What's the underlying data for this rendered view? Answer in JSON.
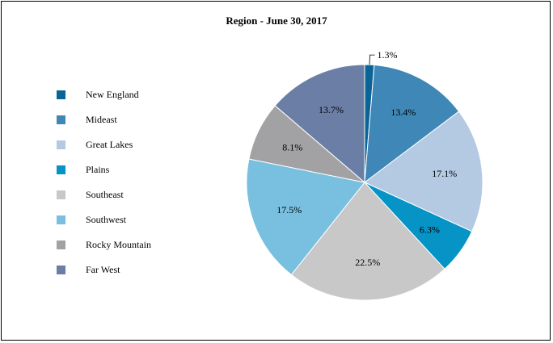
{
  "chart_data": {
    "type": "pie",
    "title": "Region - June 30, 2017",
    "legend_position": "left",
    "slices": [
      {
        "label": "New England",
        "value": 1.3,
        "display": "1.3%",
        "color": "#0a6596"
      },
      {
        "label": "Mideast",
        "value": 13.4,
        "display": "13.4%",
        "color": "#3f87b6"
      },
      {
        "label": "Great Lakes",
        "value": 17.1,
        "display": "17.1%",
        "color": "#b3cae2"
      },
      {
        "label": "Plains",
        "value": 6.3,
        "display": "6.3%",
        "color": "#0693c6"
      },
      {
        "label": "Southeast",
        "value": 22.5,
        "display": "22.5%",
        "color": "#c8c8c8"
      },
      {
        "label": "Southwest",
        "value": 17.5,
        "display": "17.5%",
        "color": "#79bfdf"
      },
      {
        "label": "Rocky Mountain",
        "value": 8.1,
        "display": "8.1%",
        "color": "#a2a2a4"
      },
      {
        "label": "Far West",
        "value": 13.7,
        "display": "13.7%",
        "color": "#6b7fa6"
      }
    ]
  }
}
